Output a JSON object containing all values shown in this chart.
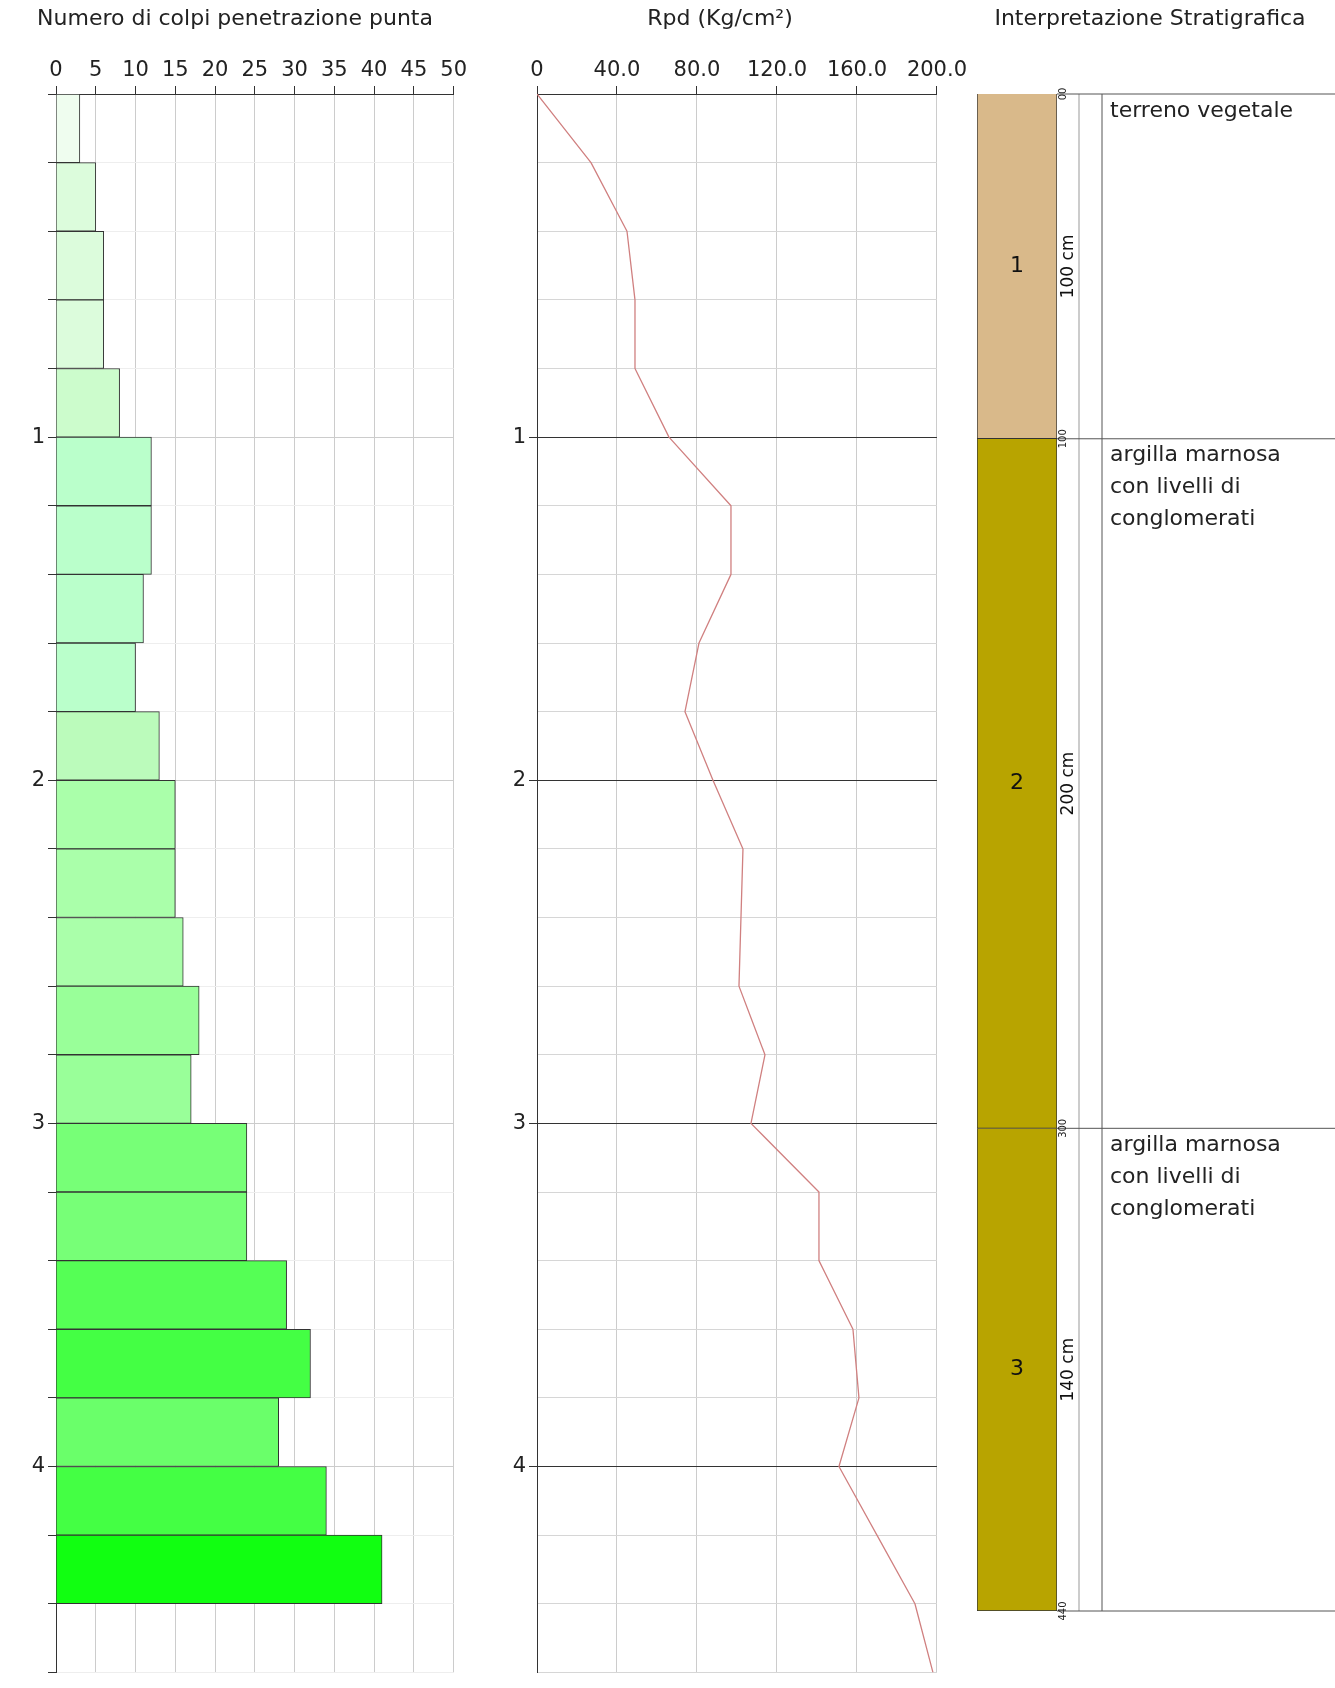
{
  "chart_data": [
    {
      "type": "bar",
      "orientation": "horizontal",
      "title": "Numero di colpi penetrazione punta",
      "x": [
        0.1,
        0.3,
        0.5,
        0.7,
        0.9,
        1.1,
        1.3,
        1.5,
        1.7,
        1.9,
        2.1,
        2.3,
        2.5,
        2.7,
        2.9,
        3.1,
        3.3,
        3.5,
        3.7,
        3.9,
        4.1,
        4.3
      ],
      "values": [
        3,
        5,
        6,
        6,
        8,
        12,
        12,
        11,
        10,
        13,
        15,
        15,
        16,
        18,
        17,
        24,
        24,
        29,
        32,
        28,
        34,
        41
      ],
      "colors": [
        "#effdef",
        "#dcfcdc",
        "#dcfcdc",
        "#dcfcdc",
        "#ccfccc",
        "#baffcb",
        "#baffcb",
        "#baffcb",
        "#baffcb",
        "#bbfbbb",
        "#aaffaa",
        "#aaffaa",
        "#aaffaa",
        "#99ff99",
        "#99ff99",
        "#77ff77",
        "#77ff77",
        "#55ff55",
        "#44ff44",
        "#6aff6a",
        "#44ff44",
        "#11ff11"
      ],
      "xlim": [
        0,
        50
      ],
      "xticks": [
        0,
        5,
        10,
        15,
        20,
        25,
        30,
        35,
        40,
        45,
        50
      ],
      "ylim": [
        4.6,
        0
      ],
      "yticks": [
        {
          "value": 0,
          "label": null
        },
        {
          "value": 0.2,
          "label": null
        },
        {
          "value": 0.4,
          "label": null
        },
        {
          "value": 0.6,
          "label": null
        },
        {
          "value": 0.8,
          "label": null
        },
        1,
        {
          "value": 1.2,
          "label": null
        },
        {
          "value": 1.4,
          "label": null
        },
        {
          "value": 1.6,
          "label": null
        },
        {
          "value": 1.8,
          "label": null
        },
        2,
        {
          "value": 2.2,
          "label": null
        },
        {
          "value": 2.4,
          "label": null
        },
        {
          "value": 2.6,
          "label": null
        },
        {
          "value": 2.8,
          "label": null
        },
        3,
        {
          "value": 3.2,
          "label": null
        },
        {
          "value": 3.4,
          "label": null
        },
        {
          "value": 3.6,
          "label": null
        },
        {
          "value": 3.8,
          "label": null
        },
        4,
        {
          "value": 4.2,
          "label": null
        },
        {
          "value": 4.4,
          "label": null
        },
        {
          "value": 4.6,
          "label": null
        }
      ],
      "grid": true
    },
    {
      "type": "line",
      "orientation": "horizontal",
      "title": "Rpd (Kg/cm²)",
      "color": "#d08080",
      "x": [
        0,
        0.2,
        0.4,
        0.6,
        0.8,
        1,
        1.2,
        1.4,
        1.6,
        1.8,
        2,
        2.2,
        2.4,
        2.6,
        2.8,
        3,
        3.2,
        3.4,
        3.6,
        3.8,
        4,
        4.2,
        4.4,
        4.6
      ],
      "values": [
        0,
        27,
        45,
        49,
        49,
        66,
        97,
        97,
        81,
        74,
        88,
        103,
        102,
        101,
        114,
        107,
        141,
        141,
        158,
        161,
        151,
        170,
        189,
        198
      ],
      "xlim": [
        0,
        200
      ],
      "xticks": [
        0,
        {
          "value": 40,
          "label": "40.0"
        },
        {
          "value": 80,
          "label": "80.0"
        },
        {
          "value": 120,
          "label": "120.0"
        },
        {
          "value": 160,
          "label": "160.0"
        },
        {
          "value": 200,
          "label": "200.0"
        }
      ],
      "ylim": [
        4.6,
        0
      ],
      "yticks": [
        {
          "value": 0,
          "label": null
        },
        {
          "value": 0.2,
          "label": null
        },
        {
          "value": 0.4,
          "label": null
        },
        {
          "value": 0.6,
          "label": null
        },
        {
          "value": 0.8,
          "label": null
        },
        1,
        {
          "value": 1.2,
          "label": null
        },
        {
          "value": 1.4,
          "label": null
        },
        {
          "value": 1.6,
          "label": null
        },
        {
          "value": 1.8,
          "label": null
        },
        2,
        {
          "value": 2.2,
          "label": null
        },
        {
          "value": 2.4,
          "label": null
        },
        {
          "value": 2.6,
          "label": null
        },
        {
          "value": 2.8,
          "label": null
        },
        3,
        {
          "value": 3.2,
          "label": null
        },
        {
          "value": 3.4,
          "label": null
        },
        {
          "value": 3.6,
          "label": null
        },
        {
          "value": 3.8,
          "label": null
        },
        4,
        {
          "value": 4.2,
          "label": null
        },
        {
          "value": 4.4,
          "label": null
        },
        {
          "value": 4.6,
          "label": null
        }
      ],
      "grid": true,
      "marker": "none",
      "line_style": "solid"
    },
    {
      "type": "bar",
      "stacked": true,
      "title": "Interpretazione Stratigrafica",
      "categories": [
        null
      ],
      "series": [
        {
          "name": "1",
          "color": "#d9b98a",
          "values": [
            100
          ],
          "value_labels": [
            "100 cm"
          ]
        },
        {
          "name": "2",
          "color": "#b8a400",
          "values": [
            200
          ],
          "value_labels": [
            "200 cm"
          ]
        },
        {
          "name": "3",
          "color": "#b8a400",
          "values": [
            140
          ],
          "value_labels": [
            "140 cm"
          ]
        }
      ],
      "ylim": [
        440,
        0
      ],
      "yticks": [
        {
          "value": 0,
          "label": "00"
        },
        100,
        300,
        440
      ],
      "tick_labels": "y",
      "annotations": [
        "terreno vegetale",
        "argilla marnosa con livelli di conglomerati",
        "argilla marnosa con livelli di conglomerati"
      ]
    }
  ]
}
